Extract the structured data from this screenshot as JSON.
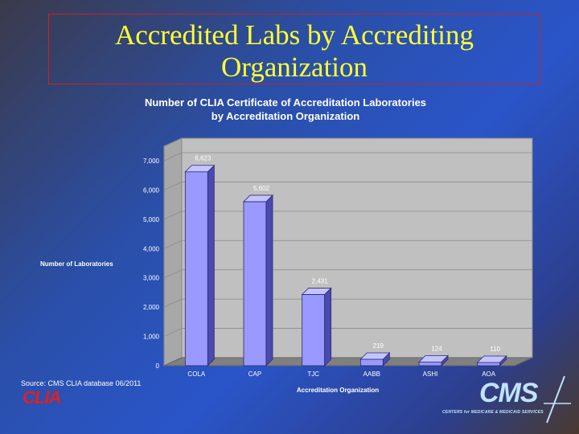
{
  "slide": {
    "title_line1": "Accredited Labs by Accrediting",
    "title_line2": "Organization",
    "source": "Source: CMS CLIA database 06/2011",
    "logo_left": "CLIA",
    "logo_right": "CMS",
    "logo_right_tagline": "CENTERS for MEDICARE & MEDICAID SERVICES"
  },
  "chart_data": {
    "type": "bar",
    "title_line1": "Number of CLIA Certificate of Accreditation  Laboratories",
    "title_line2": "by Accreditation  Organization",
    "xlabel": "Accreditation Organization",
    "ylabel": "Number of Laboratories",
    "categories": [
      "COLA",
      "CAP",
      "TJC",
      "AABB",
      "ASHI",
      "AOA"
    ],
    "values": [
      6623,
      5602,
      2431,
      219,
      124,
      110
    ],
    "data_labels": [
      "6,623",
      "5,602",
      "2,431",
      "219",
      "124",
      "110"
    ],
    "yticks": [
      0,
      1000,
      2000,
      3000,
      4000,
      5000,
      6000,
      7000
    ],
    "ytick_labels": [
      "0",
      "1,000",
      "2,000",
      "3,000",
      "4,000",
      "5,000",
      "6,000",
      "7,000"
    ],
    "ylim": [
      0,
      7000
    ],
    "grid": true,
    "style": "3d-bar",
    "colors": {
      "bar": "#9999ff",
      "bar_side": "#4a4ab0",
      "bar_top": "#c4c4ff",
      "plot_wall": "#c0c0c0",
      "floor": "#808080"
    }
  }
}
